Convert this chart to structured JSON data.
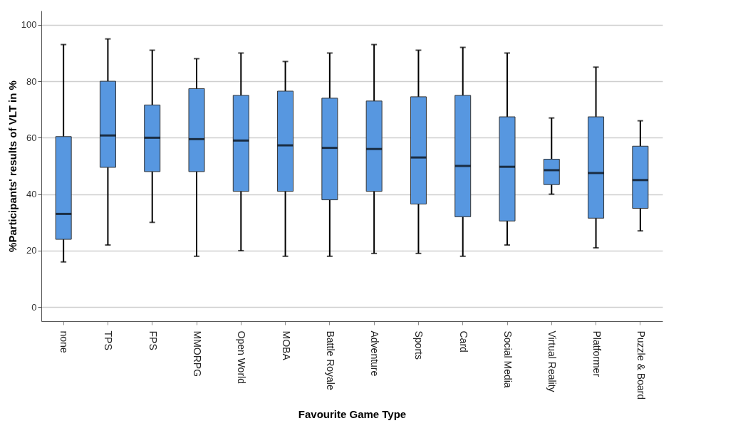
{
  "chart_data": {
    "type": "box",
    "xlabel": "Favourite Game Type",
    "ylabel": "%Participants' results of VLT in %",
    "categories": [
      "none",
      "TPS",
      "FPS",
      "MMORPG",
      "Open World",
      "MOBA",
      "Battle Royale",
      "Adventure",
      "Sports",
      "Card",
      "Social Media",
      "Virtual Reality",
      "Platformer",
      "Puzzle & Board"
    ],
    "boxes": [
      {
        "low": 16,
        "q1": 24,
        "median": 33,
        "q3": 60.4,
        "high": 93
      },
      {
        "low": 22,
        "q1": 49.5,
        "median": 60.8,
        "q3": 80,
        "high": 95
      },
      {
        "low": 30,
        "q1": 48,
        "median": 60,
        "q3": 71.6,
        "high": 91
      },
      {
        "low": 18,
        "q1": 48,
        "median": 59.5,
        "q3": 77.4,
        "high": 88
      },
      {
        "low": 20,
        "q1": 41,
        "median": 59,
        "q3": 75,
        "high": 90
      },
      {
        "low": 18,
        "q1": 41,
        "median": 57.3,
        "q3": 76.5,
        "high": 87
      },
      {
        "low": 18,
        "q1": 38,
        "median": 56.4,
        "q3": 74,
        "high": 90
      },
      {
        "low": 19,
        "q1": 41,
        "median": 56,
        "q3": 73,
        "high": 93
      },
      {
        "low": 19,
        "q1": 36.5,
        "median": 53,
        "q3": 74.5,
        "high": 91
      },
      {
        "low": 18,
        "q1": 32,
        "median": 50,
        "q3": 75,
        "high": 92
      },
      {
        "low": 22,
        "q1": 30.5,
        "median": 49.7,
        "q3": 67.4,
        "high": 90
      },
      {
        "low": 40,
        "q1": 43.4,
        "median": 48.5,
        "q3": 52.4,
        "high": 67
      },
      {
        "low": 21,
        "q1": 31.5,
        "median": 47.5,
        "q3": 67.4,
        "high": 85
      },
      {
        "low": 27,
        "q1": 35,
        "median": 45,
        "q3": 57,
        "high": 66
      }
    ],
    "color": "#5797e0",
    "ylim": [
      -5,
      105
    ],
    "yticks": [
      0,
      20,
      40,
      60,
      80,
      100
    ],
    "grid": "y"
  }
}
